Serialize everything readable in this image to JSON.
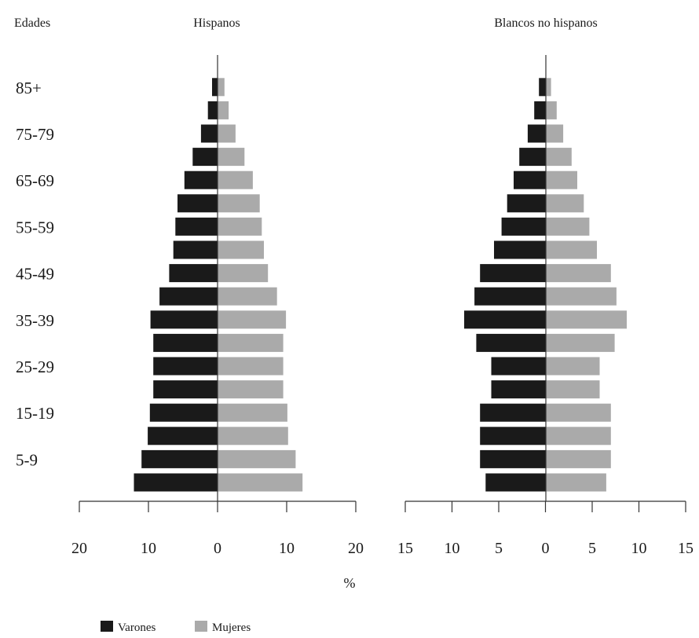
{
  "chart_data": [
    {
      "type": "bar",
      "orientation": "horizontal-population-pyramid",
      "title": "Hispanos",
      "y_header": "Edades",
      "xlabel": "%",
      "xlim": [
        -20,
        20
      ],
      "x_ticks": [
        -20,
        -10,
        0,
        10,
        20
      ],
      "x_tick_labels": [
        "20",
        "10",
        "0",
        "10",
        "20"
      ],
      "categories": [
        "85+",
        "80-84",
        "75-79",
        "70-74",
        "65-69",
        "60-64",
        "55-59",
        "50-54",
        "45-49",
        "40-44",
        "35-39",
        "30-34",
        "25-29",
        "20-24",
        "15-19",
        "10-14",
        "5-9",
        "0-4"
      ],
      "shown_category_labels": [
        "85+",
        "75-79",
        "65-69",
        "55-59",
        "45-49",
        "35-39",
        "25-29",
        "15-19",
        "5-9"
      ],
      "series": [
        {
          "name": "Varones",
          "side": "left",
          "color": "#1a1a1a",
          "values": [
            0.8,
            1.4,
            2.4,
            3.6,
            4.8,
            5.8,
            6.1,
            6.4,
            7.0,
            8.4,
            9.7,
            9.3,
            9.3,
            9.3,
            9.8,
            10.1,
            11.0,
            12.1
          ]
        },
        {
          "name": "Mujeres",
          "side": "right",
          "color": "#aaaaaa",
          "values": [
            1.0,
            1.6,
            2.6,
            3.9,
            5.1,
            6.1,
            6.4,
            6.7,
            7.3,
            8.6,
            9.9,
            9.5,
            9.5,
            9.5,
            10.1,
            10.2,
            11.3,
            12.3
          ]
        }
      ]
    },
    {
      "type": "bar",
      "orientation": "horizontal-population-pyramid",
      "title": "Blancos no hispanos",
      "xlim": [
        -15,
        15
      ],
      "x_ticks": [
        -15,
        -10,
        -5,
        0,
        5,
        10,
        15
      ],
      "x_tick_labels": [
        "15",
        "10",
        "5",
        "0",
        "5",
        "10",
        "15"
      ],
      "categories": [
        "85+",
        "80-84",
        "75-79",
        "70-74",
        "65-69",
        "60-64",
        "55-59",
        "50-54",
        "45-49",
        "40-44",
        "35-39",
        "30-34",
        "25-29",
        "20-24",
        "15-19",
        "10-14",
        "5-9",
        "0-4"
      ],
      "series": [
        {
          "name": "Varones",
          "side": "left",
          "color": "#1a1a1a",
          "values": [
            0.7,
            1.2,
            1.9,
            2.8,
            3.4,
            4.1,
            4.7,
            5.5,
            7.0,
            7.6,
            8.7,
            7.4,
            5.8,
            5.8,
            7.0,
            7.0,
            7.0,
            6.4
          ]
        },
        {
          "name": "Mujeres",
          "side": "right",
          "color": "#aaaaaa",
          "values": [
            0.6,
            1.2,
            1.9,
            2.8,
            3.4,
            4.1,
            4.7,
            5.5,
            7.0,
            7.6,
            8.7,
            7.4,
            5.8,
            5.8,
            7.0,
            7.0,
            7.0,
            6.5
          ]
        }
      ]
    }
  ],
  "legend": {
    "placement": "bottom-left",
    "items": [
      {
        "label": "Varones",
        "color": "#1a1a1a"
      },
      {
        "label": "Mujeres",
        "color": "#aaaaaa"
      }
    ]
  }
}
